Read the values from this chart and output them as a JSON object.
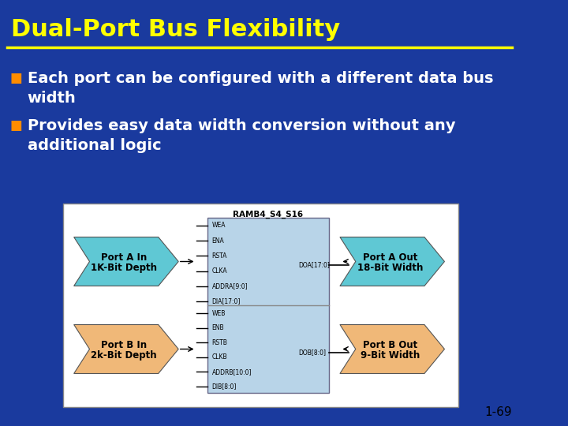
{
  "bg_color": "#1a3a9e",
  "title_text": "Dual-Port Bus Flexibility",
  "title_color": "#ffff00",
  "title_fontsize": 22,
  "underline_color": "#ffff00",
  "bullet_color": "#ff8c00",
  "bullet_texts": [
    "Each port can be configured with a different data bus\nwidth",
    "Provides easy data width conversion without any\nadditional logic"
  ],
  "bullet_text_color": "#ffffff",
  "bullet_fontsize": 14,
  "diagram_bg": "#ffffff",
  "diagram_inner_bg": "#b8d4e8",
  "port_a_color": "#5fc8d4",
  "port_b_color": "#f0b878",
  "ram_signals_a": [
    "WEA",
    "ENA",
    "RSTA",
    "CLKA",
    "ADDRA[9:0]",
    "DIA[17:0]"
  ],
  "ram_signals_b": [
    "WEB",
    "ENB",
    "RSTB",
    "CLKB",
    "ADDRB[10:0]",
    "DIB[8:0]"
  ],
  "output_a": "DOA[17:0]",
  "output_b": "DOB[8:0]",
  "port_a_in_label": "Port A In\n1K-Bit Depth",
  "port_a_out_label": "Port A Out\n18-Bit Width",
  "port_b_in_label": "Port B In\n2k-Bit Depth",
  "port_b_out_label": "Port B Out\n9-Bit Width",
  "ram_title": "RAMB4_S4_S16",
  "page_num": "1-69",
  "page_num_color": "#000000"
}
